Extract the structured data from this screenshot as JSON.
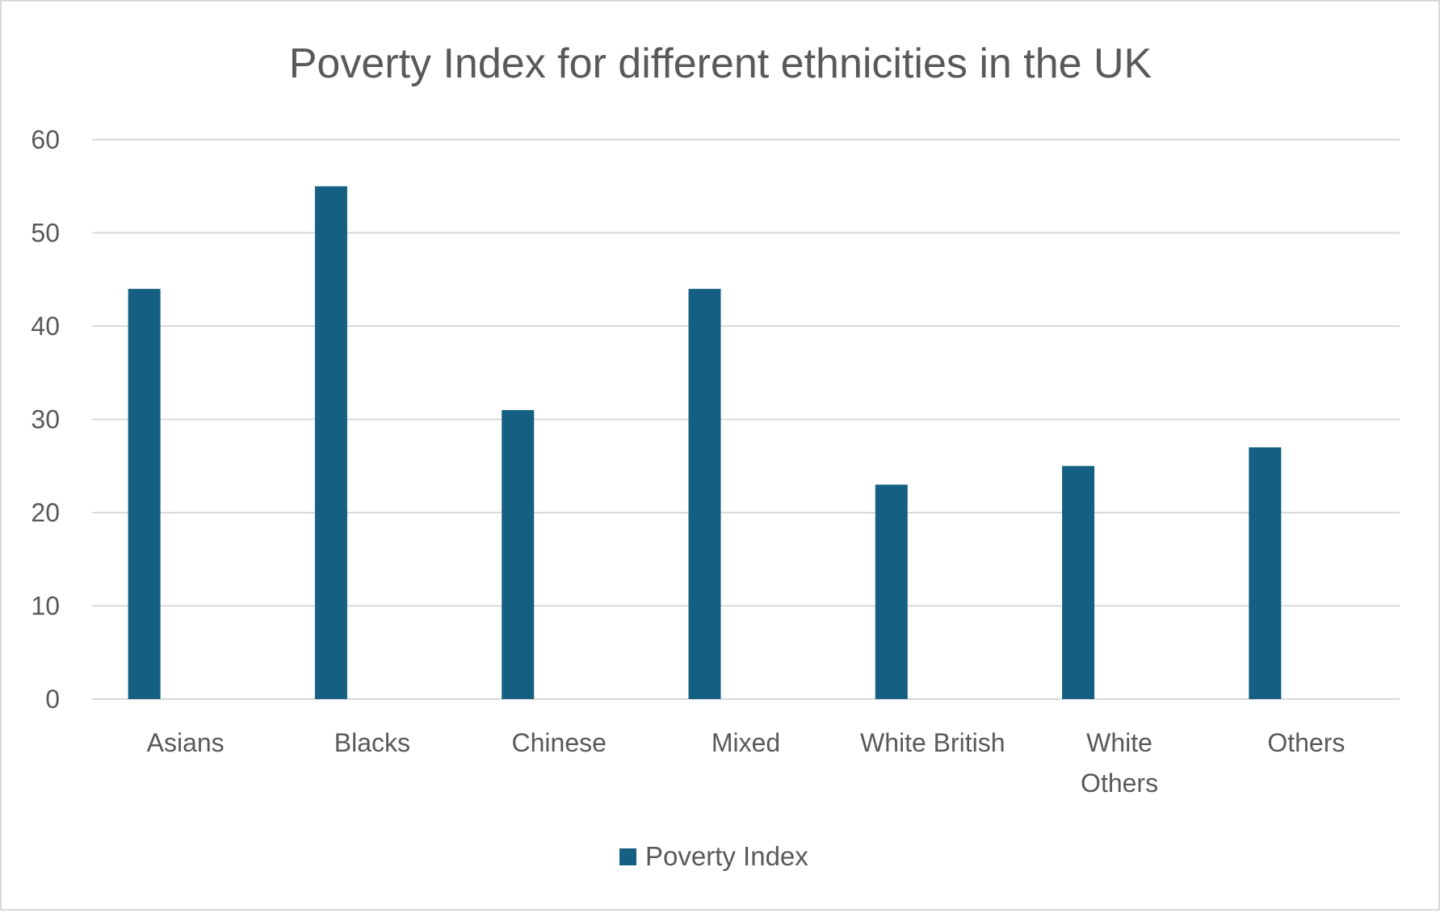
{
  "chart_data": {
    "type": "bar",
    "title": "Poverty Index for different ethnicities in the UK",
    "categories": [
      "Asians",
      "Blacks",
      "Chinese",
      "Mixed",
      "White British",
      "White Others",
      "Others"
    ],
    "series": [
      {
        "name": "Poverty Index",
        "values": [
          44,
          55,
          31,
          44,
          23,
          25,
          27
        ],
        "color": "#156082"
      }
    ],
    "xlabel": "",
    "ylabel": "",
    "ylim": [
      0,
      60
    ],
    "yticks": [
      0,
      10,
      20,
      30,
      40,
      50,
      60
    ],
    "grid": true,
    "legend": "bottom"
  }
}
